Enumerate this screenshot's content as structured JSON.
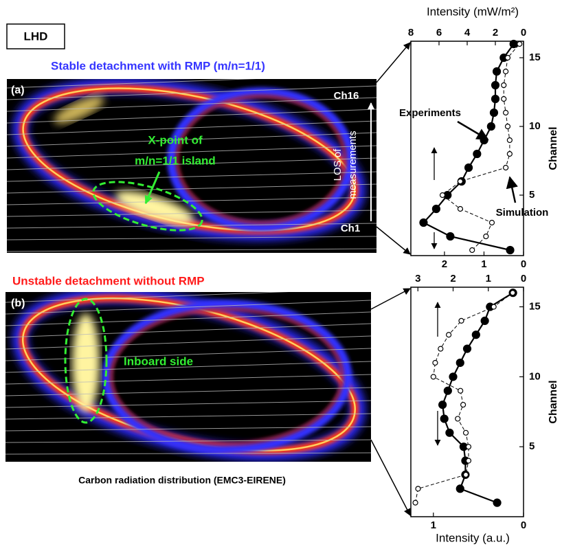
{
  "figure": {
    "tag": "LHD",
    "panel_a": {
      "label": "(a)",
      "title": "Stable detachment with RMP (m/n=1/1)",
      "ch_top": "Ch16",
      "ch_bottom": "Ch1",
      "los": [
        "LOS of",
        "measurements"
      ],
      "xpoint": [
        "X-point of",
        "m/n=1/1 island"
      ]
    },
    "panel_b": {
      "label": "(b)",
      "title": "Unstable detachment without RMP",
      "inboard": "Inboard side"
    },
    "caption": "Carbon radiation distribution (EMC3-EIRENE)"
  },
  "chart_data": [
    {
      "type": "line",
      "xlabel": "Intensity (mW/m²)",
      "ylabel": "Channel",
      "xlim": [
        8,
        0
      ],
      "xticks": [
        8,
        6,
        4,
        2,
        0
      ],
      "x2lim": [
        2.85,
        0
      ],
      "x2ticks": [
        2,
        1,
        0
      ],
      "ylim": [
        0.6,
        16.2
      ],
      "yticks": [
        5,
        10,
        15
      ],
      "y": [
        1,
        2,
        3,
        4,
        5,
        6,
        7,
        8,
        9,
        10,
        11,
        12,
        13,
        14,
        15,
        16
      ],
      "series": [
        {
          "name": "Experiments",
          "color": "#000000",
          "style": "solid",
          "axis": "x",
          "values": [
            0.95,
            5.2,
            7.1,
            6.2,
            5.4,
            4.4,
            3.9,
            3.3,
            2.8,
            2.3,
            2.1,
            2.0,
            2.0,
            1.9,
            1.4,
            0.7
          ]
        },
        {
          "name": "Simulation",
          "color": "#000000",
          "style": "dashed",
          "axis": "x2",
          "values": [
            1.3,
            0.95,
            0.8,
            1.6,
            2.05,
            1.6,
            0.45,
            0.35,
            0.35,
            0.4,
            0.45,
            0.5,
            0.5,
            0.45,
            0.4,
            0.1
          ]
        }
      ]
    },
    {
      "type": "line",
      "x2label": "Intensity (a.u.)",
      "ylabel": "Channel",
      "xlim": [
        3.2,
        0
      ],
      "xticks": [
        3,
        2,
        1,
        0
      ],
      "x2lim": [
        1.25,
        0
      ],
      "x2ticks": [
        1,
        0
      ],
      "ylim": [
        0,
        16.4
      ],
      "yticks": [
        5,
        10,
        15
      ],
      "y": [
        1,
        2,
        3,
        4,
        5,
        6,
        7,
        8,
        9,
        10,
        11,
        12,
        13,
        14,
        15,
        16
      ],
      "series": [
        {
          "color": "#000000",
          "style": "solid",
          "axis": "x",
          "values": [
            0.75,
            1.8,
            1.65,
            1.65,
            1.7,
            2.1,
            2.25,
            2.3,
            2.15,
            2.0,
            1.8,
            1.6,
            1.35,
            1.1,
            0.95,
            0.3
          ]
        },
        {
          "color": "#000000",
          "style": "dashed",
          "axis": "x2",
          "values": [
            1.2,
            1.17,
            0.64,
            0.61,
            0.61,
            0.64,
            0.73,
            0.67,
            0.7,
            1.0,
            0.98,
            0.92,
            0.83,
            0.69,
            0.33,
            0.12
          ]
        }
      ]
    }
  ]
}
